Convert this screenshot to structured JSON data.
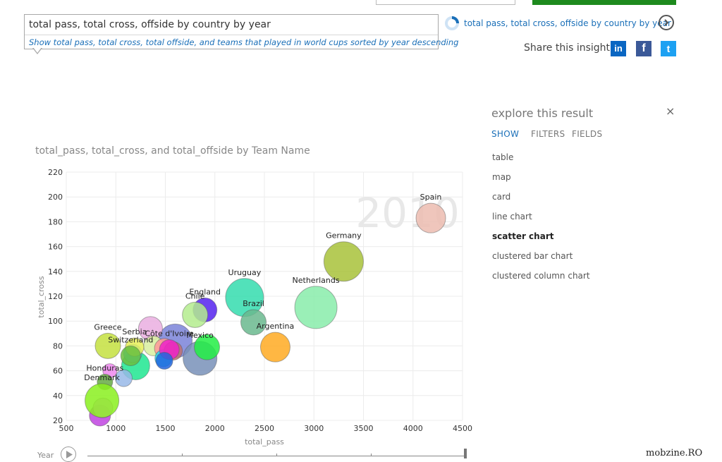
{
  "search": {
    "query": "total pass, total cross, offside by country by year",
    "suggestion": "Show total pass, total cross, total offside, and teams that played in world cups sorted by year descending"
  },
  "related": {
    "link_text": "total pass, total cross, offside by country by year"
  },
  "share": {
    "label": "Share this insight",
    "linkedin": "in",
    "facebook": "f",
    "twitter": "t"
  },
  "panel": {
    "title": "explore this result",
    "close": "×",
    "tabs": [
      "SHOW",
      "FILTERS",
      "FIELDS"
    ],
    "active_tab": 0,
    "visualizations": [
      "table",
      "map",
      "card",
      "line chart",
      "scatter chart",
      "clustered bar chart",
      "clustered column chart"
    ],
    "active_visualization": 4
  },
  "timeline": {
    "label": "Year"
  },
  "watermark": "mobzine.RO",
  "colors": {
    "accent": "#1a6fb8",
    "green_button": "#1e8a1e"
  },
  "chart_data": {
    "type": "scatter",
    "title": "total_pass, total_cross, and total_offside by Team Name",
    "xlabel": "total_pass",
    "ylabel": "total_cross",
    "xlim": [
      500,
      4500
    ],
    "ylim": [
      20,
      220
    ],
    "xticks": [
      500,
      1000,
      1500,
      2000,
      2500,
      3000,
      3500,
      4000,
      4500
    ],
    "yticks": [
      20,
      40,
      60,
      80,
      100,
      120,
      140,
      160,
      180,
      200,
      220
    ],
    "grid": true,
    "play_axis_value": "2010",
    "points": [
      {
        "label": "",
        "x": 1200,
        "y": 64,
        "r": 20,
        "color": "#1ee690"
      },
      {
        "label": "",
        "x": 1170,
        "y": 74,
        "r": 13,
        "color": "#40c8e0"
      },
      {
        "label": "",
        "x": 1600,
        "y": 84,
        "r": 24,
        "color": "#7a82d8"
      },
      {
        "label": "",
        "x": 1350,
        "y": 94,
        "r": 17,
        "color": "#eaaee0"
      },
      {
        "label": "",
        "x": 1380,
        "y": 80,
        "r": 14,
        "color": "#d8f0a0"
      },
      {
        "label": "",
        "x": 1490,
        "y": 78,
        "r": 14,
        "color": "#ff9898"
      },
      {
        "label": "",
        "x": 1480,
        "y": 70,
        "r": 12,
        "color": "#22d4f0"
      },
      {
        "label": "",
        "x": 1080,
        "y": 54,
        "r": 12,
        "color": "#98b8e8"
      },
      {
        "label": "",
        "x": 940,
        "y": 60,
        "r": 10,
        "color": "#ee88ee"
      },
      {
        "label": "",
        "x": 840,
        "y": 24,
        "r": 15,
        "color": "#c044e0"
      },
      {
        "label": "",
        "x": 870,
        "y": 30,
        "r": 14,
        "color": "#ec9cff"
      },
      {
        "label": "",
        "x": 1580,
        "y": 76,
        "r": 13,
        "color": "#c07070"
      },
      {
        "label": "Spain",
        "x": 4180,
        "y": 183,
        "r": 21,
        "color": "#ecbcb0"
      },
      {
        "label": "Germany",
        "x": 3300,
        "y": 148,
        "r": 28,
        "color": "#a8c23a"
      },
      {
        "label": "Netherlands",
        "x": 3020,
        "y": 111,
        "r": 30,
        "color": "#88ecaa"
      },
      {
        "label": "Uruguay",
        "x": 2300,
        "y": 119,
        "r": 27,
        "color": "#34dcae"
      },
      {
        "label": "Brazil",
        "x": 2390,
        "y": 99,
        "r": 18,
        "color": "#6ab88e"
      },
      {
        "label": "Argentina",
        "x": 2610,
        "y": 79,
        "r": 21,
        "color": "#ffaa22"
      },
      {
        "label": "England",
        "x": 1900,
        "y": 109,
        "r": 17,
        "color": "#5522ee"
      },
      {
        "label": "Chile",
        "x": 1800,
        "y": 105,
        "r": 18,
        "color": "#b4ec8e"
      },
      {
        "label": "Mexico",
        "x": 1850,
        "y": 70,
        "r": 24,
        "color": "#7890b8"
      },
      {
        "label": "",
        "x": 1920,
        "y": 79,
        "r": 18,
        "color": "#22ee44"
      },
      {
        "label": "Côte d'Ivoire",
        "x": 1540,
        "y": 77,
        "r": 14,
        "color": "#ee22c8"
      },
      {
        "label": "",
        "x": 1490,
        "y": 68,
        "r": 12,
        "color": "#2266dd"
      },
      {
        "label": "Greece",
        "x": 920,
        "y": 80,
        "r": 18,
        "color": "#c4e040"
      },
      {
        "label": "Serbia",
        "x": 1190,
        "y": 79,
        "r": 13,
        "color": "#e8f058"
      },
      {
        "label": "Switzerland",
        "x": 1150,
        "y": 72,
        "r": 14,
        "color": "#6ac040"
      },
      {
        "label": "Honduras",
        "x": 890,
        "y": 51,
        "r": 11,
        "color": "#66aa44"
      },
      {
        "label": "Denmark",
        "x": 860,
        "y": 36,
        "r": 24,
        "color": "#8af01e"
      }
    ]
  }
}
